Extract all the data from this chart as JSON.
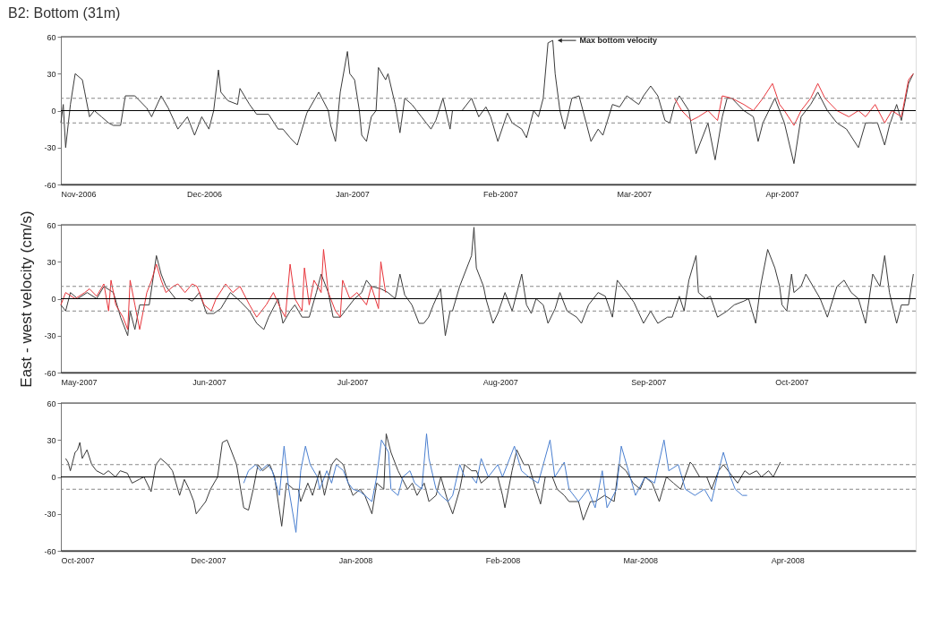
{
  "chart_data": [
    {
      "type": "line",
      "title": "B2: Bottom (31m)",
      "xlim": [
        "2006-11-01",
        "2007-04-29"
      ],
      "ylim": [
        -60,
        60
      ],
      "yticks": [
        -60,
        -30,
        0,
        30,
        60
      ],
      "xticks": [
        {
          "value": "2006-11-01",
          "label": "Nov-2006"
        },
        {
          "value": "2006-12-01",
          "label": "Dec-2006"
        },
        {
          "value": "2007-01-01",
          "label": "Jan-2007"
        },
        {
          "value": "2007-02-01",
          "label": "Feb-2007"
        },
        {
          "value": "2007-03-01",
          "label": "Mar-2007"
        },
        {
          "value": "2007-04-01",
          "label": "Apr-2007"
        }
      ],
      "ref_lines": [
        {
          "axis": "y",
          "value": 0,
          "color": "#000000",
          "line_style": "solid"
        },
        {
          "axis": "y",
          "value": 10,
          "color": "#888888",
          "line_style": "dashed"
        },
        {
          "axis": "y",
          "value": -10,
          "color": "#888888",
          "line_style": "dashed"
        },
        {
          "axis": "y",
          "value": 60,
          "color": "#333333",
          "line_style": "solid"
        },
        {
          "axis": "y",
          "value": -60,
          "color": "#333333",
          "line_style": "solid"
        }
      ],
      "annotations": [
        {
          "text": "Max bottom velocity",
          "x": "2007-02-12",
          "y": 57
        }
      ],
      "series": [
        {
          "color": "#3a3a3a",
          "x": [
            "2006-11-01",
            "2006-11-01T12:00",
            "2006-11-02",
            "2006-11-03",
            "2006-11-04",
            "2006-11-05T12:00",
            "2006-11-06",
            "2006-11-07",
            "2006-11-08",
            "2006-11-09T12:00",
            "2006-11-11",
            "2006-11-12",
            "2006-11-13T12:00",
            "2006-11-14T12:00",
            "2006-11-16T12:00",
            "2006-11-19",
            "2006-11-20",
            "2006-11-22",
            "2006-11-23T12:00",
            "2006-11-25T12:00",
            "2006-11-27T12:00",
            "2006-11-29",
            "2006-11-30T12:00",
            "2006-12-02",
            "2006-12-03",
            "2006-12-04",
            "2006-12-04T12:00",
            "2006-12-06",
            "2006-12-08",
            "2006-12-08T12:00",
            "2006-12-10T12:00",
            "2006-12-12",
            "2006-12-14T12:00",
            "2006-12-16T12:00",
            "2006-12-17T12:00",
            "2006-12-19",
            "2006-12-20T12:00",
            "2006-12-21T12:00",
            "2006-12-22T12:00",
            "2006-12-25",
            "2006-12-27",
            "2006-12-27T12:00",
            "2006-12-28T12:00",
            "2006-12-29T12:00",
            "2006-12-31",
            "2006-12-31T12:00",
            "2007-01-01T12:00",
            "2007-01-02T12:00",
            "2007-01-03",
            "2007-01-04",
            "2007-01-05",
            "2007-01-06",
            "2007-01-06T12:00",
            "2007-01-08",
            "2007-01-08T12:00",
            "2007-01-10",
            "2007-01-11",
            "2007-01-12",
            "2007-01-13T12:00",
            "2007-01-15T12:00",
            "2007-01-16T12:00",
            "2007-01-17T12:00",
            "2007-01-18T12:00",
            "2007-01-20",
            "2007-01-21T12:00",
            "2007-01-22",
            "2007-01-24",
            "2007-01-26",
            "2007-01-27T12:00",
            "2007-01-29",
            "2007-01-30",
            "2007-01-31T12:00",
            "2007-02-02T12:00",
            "2007-02-03T12:00",
            "2007-02-05T12:00",
            "2007-02-06T12:00",
            "2007-02-08",
            "2007-02-09",
            "2007-02-10",
            "2007-02-11",
            "2007-02-12",
            "2007-02-12T12:00",
            "2007-02-13T12:00",
            "2007-02-14T12:00",
            "2007-02-16",
            "2007-02-17T12:00",
            "2007-02-19",
            "2007-02-20",
            "2007-02-21T12:00",
            "2007-02-22T12:00",
            "2007-02-24T12:00",
            "2007-02-26",
            "2007-02-27T12:00",
            "2007-03-02",
            "2007-03-03",
            "2007-03-04T12:00",
            "2007-03-06",
            "2007-03-07T12:00",
            "2007-03-08T12:00",
            "2007-03-09T12:00",
            "2007-03-10T12:00",
            "2007-03-12T12:00",
            "2007-03-14",
            "2007-03-15T12:00",
            "2007-03-16T12:00",
            "2007-03-18",
            "2007-03-19T12:00",
            "2007-03-20T12:00",
            "2007-03-21T12:00",
            "2007-03-24",
            "2007-03-26",
            "2007-03-27",
            "2007-03-28",
            "2007-03-30T12:00",
            "2007-04-01T12:00",
            "2007-04-03T12:00",
            "2007-04-05",
            "2007-04-07",
            "2007-04-08T12:00",
            "2007-04-10T12:00",
            "2007-04-12T12:00",
            "2007-04-14T12:00",
            "2007-04-17",
            "2007-04-18T12:00",
            "2007-04-21",
            "2007-04-22T12:00",
            "2007-04-23T12:00",
            "2007-04-25",
            "2007-04-26",
            "2007-04-27T12:00",
            "2007-04-28T12:00"
          ],
          "values": [
            -10,
            5,
            -30,
            5,
            30,
            25,
            15,
            -5,
            0,
            -5,
            -10,
            -12,
            -12,
            12,
            12,
            2,
            -5,
            12,
            2,
            -15,
            -5,
            -20,
            -5,
            -15,
            0,
            33,
            15,
            8,
            5,
            18,
            5,
            -3,
            -3,
            -15,
            -15,
            -22,
            -28,
            -15,
            -2,
            15,
            0,
            -12,
            -25,
            15,
            48,
            30,
            25,
            0,
            -20,
            -25,
            -5,
            0,
            35,
            25,
            30,
            5,
            -18,
            10,
            5,
            -5,
            -10,
            -15,
            -8,
            10,
            -15,
            0,
            0,
            10,
            -5,
            3,
            -5,
            -25,
            -2,
            -10,
            -15,
            -22,
            0,
            -5,
            10,
            55,
            57,
            30,
            0,
            -15,
            10,
            12,
            -10,
            -25,
            -15,
            -20,
            5,
            3,
            12,
            5,
            12,
            20,
            12,
            -8,
            -10,
            5,
            12,
            0,
            -35,
            -20,
            -10,
            -40,
            -5,
            10,
            10,
            0,
            -5,
            -25,
            -10,
            10,
            -10,
            -43,
            -5,
            5,
            15,
            0,
            -10,
            -15,
            -30,
            -10,
            -10,
            -28,
            -12,
            5,
            -8,
            22,
            30
          ]
        },
        {
          "color": "#e8343a",
          "x": [
            "2007-03-09T12:00",
            "2007-03-11",
            "2007-03-13",
            "2007-03-14T12:00",
            "2007-03-16T12:00",
            "2007-03-18T12:00",
            "2007-03-19T12:00",
            "2007-03-21T12:00",
            "2007-03-24",
            "2007-03-26",
            "2007-03-28",
            "2007-03-30",
            "2007-03-31T12:00",
            "2007-04-01T12:00",
            "2007-04-03T12:00",
            "2007-04-05",
            "2007-04-07",
            "2007-04-08T12:00",
            "2007-04-10",
            "2007-04-12T12:00",
            "2007-04-15",
            "2007-04-17",
            "2007-04-18T12:00",
            "2007-04-20T12:00",
            "2007-04-22T12:00",
            "2007-04-24",
            "2007-04-26",
            "2007-04-27T12:00",
            "2007-04-28T12:00"
          ],
          "values": [
            10,
            0,
            -8,
            -5,
            0,
            -8,
            12,
            10,
            5,
            0,
            10,
            22,
            5,
            0,
            -12,
            0,
            10,
            22,
            10,
            0,
            -5,
            0,
            -5,
            5,
            -10,
            0,
            -5,
            25,
            30
          ]
        }
      ]
    },
    {
      "type": "line",
      "ylabel": "East - west velocity (cm/s)",
      "xlim": [
        "2007-05-01",
        "2007-10-27"
      ],
      "ylim": [
        -60,
        60
      ],
      "yticks": [
        -60,
        -30,
        0,
        30,
        60
      ],
      "xticks": [
        {
          "value": "2007-05-01",
          "label": "May-2007"
        },
        {
          "value": "2007-06-01",
          "label": "Jun-2007"
        },
        {
          "value": "2007-07-01",
          "label": "Jul-2007"
        },
        {
          "value": "2007-08-01",
          "label": "Aug-2007"
        },
        {
          "value": "2007-09-01",
          "label": "Sep-2007"
        },
        {
          "value": "2007-10-01",
          "label": "Oct-2007"
        }
      ],
      "ref_lines": [
        {
          "axis": "y",
          "value": 0,
          "color": "#000000",
          "line_style": "solid"
        },
        {
          "axis": "y",
          "value": 10,
          "color": "#888888",
          "line_style": "dashed"
        },
        {
          "axis": "y",
          "value": -10,
          "color": "#888888",
          "line_style": "dashed"
        },
        {
          "axis": "y",
          "value": 60,
          "color": "#333333",
          "line_style": "solid"
        },
        {
          "axis": "y",
          "value": -60,
          "color": "#333333",
          "line_style": "solid"
        }
      ],
      "series": [
        {
          "color": "#3a3a3a",
          "x": [
            "2007-05-01",
            "2007-05-02",
            "2007-05-03",
            "2007-05-04T12:00",
            "2007-05-06T12:00",
            "2007-05-08T12:00",
            "2007-05-10",
            "2007-05-12",
            "2007-05-13T12:00",
            "2007-05-14",
            "2007-05-15",
            "2007-05-15T12:00",
            "2007-05-16T12:00",
            "2007-05-17T12:00",
            "2007-05-19T12:00",
            "2007-05-21",
            "2007-05-22",
            "2007-05-23",
            "2007-05-25",
            "2007-05-27T12:00",
            "2007-05-28T12:00",
            "2007-05-30",
            "2007-05-31T12:00",
            "2007-06-02",
            "2007-06-03T12:00",
            "2007-06-05T12:00",
            "2007-06-07T12:00",
            "2007-06-09T12:00",
            "2007-06-11",
            "2007-06-12T12:00",
            "2007-06-13T12:00",
            "2007-06-15T12:00",
            "2007-06-16T12:00",
            "2007-06-18",
            "2007-06-19",
            "2007-06-20T12:00",
            "2007-06-22",
            "2007-06-23T12:00",
            "2007-06-24T12:00",
            "2007-06-26",
            "2007-06-27",
            "2007-06-28T12:00",
            "2007-06-29T12:00",
            "2007-07-01T12:00",
            "2007-07-03",
            "2007-07-04",
            "2007-07-05",
            "2007-07-07",
            "2007-07-08T12:00",
            "2007-07-10",
            "2007-07-11",
            "2007-07-12",
            "2007-07-13T12:00",
            "2007-07-15",
            "2007-07-16",
            "2007-07-17",
            "2007-07-18",
            "2007-07-19T12:00",
            "2007-07-20T12:00",
            "2007-07-21T12:00",
            "2007-07-22",
            "2007-07-23T12:00",
            "2007-07-24T12:00",
            "2007-07-26",
            "2007-07-26T12:00",
            "2007-07-27",
            "2007-07-28T12:00",
            "2007-07-29",
            "2007-07-30T12:00",
            "2007-07-31T12:00",
            "2007-08-02",
            "2007-08-03T12:00",
            "2007-08-05T12:00",
            "2007-08-06T12:00",
            "2007-08-07T12:00",
            "2007-08-08T12:00",
            "2007-08-10",
            "2007-08-11",
            "2007-08-12T12:00",
            "2007-08-13T12:00",
            "2007-08-15",
            "2007-08-17",
            "2007-08-18",
            "2007-08-19T12:00",
            "2007-08-21T12:00",
            "2007-08-23",
            "2007-08-24T12:00",
            "2007-08-25T12:00",
            "2007-08-27T12:00",
            "2007-08-29",
            "2007-08-31",
            "2007-09-01T12:00",
            "2007-09-03",
            "2007-09-05",
            "2007-09-06",
            "2007-09-07T12:00",
            "2007-09-08T12:00",
            "2007-09-09T12:00",
            "2007-09-11",
            "2007-09-11T12:00",
            "2007-09-13",
            "2007-09-14",
            "2007-09-15T12:00",
            "2007-09-17T12:00",
            "2007-09-19",
            "2007-09-21",
            "2007-09-22",
            "2007-09-23T12:00",
            "2007-09-24T12:00",
            "2007-09-26",
            "2007-09-27T12:00",
            "2007-09-28T12:00",
            "2007-09-29",
            "2007-09-30",
            "2007-10-01",
            "2007-10-01T12:00",
            "2007-10-03",
            "2007-10-04",
            "2007-10-05T12:00",
            "2007-10-07",
            "2007-10-08T12:00",
            "2007-10-10T12:00",
            "2007-10-12",
            "2007-10-13T12:00",
            "2007-10-15",
            "2007-10-16T12:00",
            "2007-10-18",
            "2007-10-19T12:00",
            "2007-10-20T12:00",
            "2007-10-21T12:00",
            "2007-10-23",
            "2007-10-24",
            "2007-10-25T12:00",
            "2007-10-26T12:00"
          ],
          "values": [
            -5,
            -10,
            5,
            0,
            5,
            0,
            10,
            5,
            -15,
            -20,
            -30,
            -10,
            -25,
            -5,
            -5,
            35,
            20,
            10,
            0,
            0,
            -2,
            5,
            -12,
            -12,
            -8,
            5,
            -2,
            -10,
            -20,
            -25,
            -15,
            0,
            -20,
            -10,
            -5,
            -15,
            -15,
            5,
            20,
            5,
            -15,
            -15,
            -10,
            0,
            5,
            15,
            10,
            8,
            5,
            0,
            20,
            3,
            -5,
            -20,
            -20,
            -15,
            -5,
            8,
            -30,
            -10,
            -10,
            10,
            20,
            35,
            58,
            25,
            10,
            0,
            -20,
            -12,
            5,
            -10,
            20,
            -5,
            -12,
            0,
            -5,
            -20,
            -8,
            5,
            -10,
            -15,
            -20,
            -5,
            5,
            2,
            -15,
            15,
            5,
            -3,
            -20,
            -10,
            -20,
            -15,
            -15,
            2,
            -10,
            15,
            35,
            5,
            0,
            2,
            -15,
            -10,
            -5,
            -2,
            0,
            -20,
            10,
            40,
            25,
            10,
            -5,
            -10,
            20,
            5,
            10,
            20,
            10,
            0,
            -15,
            10,
            15,
            5,
            0,
            -20,
            20,
            10,
            35,
            5,
            -20,
            -5,
            -5,
            20
          ]
        },
        {
          "color": "#e8343a",
          "x": [
            "2007-05-01",
            "2007-05-02",
            "2007-05-04",
            "2007-05-06",
            "2007-05-07",
            "2007-05-08T12:00",
            "2007-05-10",
            "2007-05-11",
            "2007-05-11T12:00",
            "2007-05-12T12:00",
            "2007-05-14",
            "2007-05-15",
            "2007-05-15T12:00",
            "2007-05-16T12:00",
            "2007-05-17T12:00",
            "2007-05-19",
            "2007-05-20",
            "2007-05-21",
            "2007-05-22",
            "2007-05-23",
            "2007-05-24T12:00",
            "2007-05-25T12:00",
            "2007-05-27",
            "2007-05-28T12:00",
            "2007-05-29T12:00",
            "2007-05-31",
            "2007-06-01T12:00",
            "2007-06-02T12:00",
            "2007-06-04T12:00",
            "2007-06-06",
            "2007-06-07T12:00",
            "2007-06-09T12:00",
            "2007-06-11",
            "2007-06-13",
            "2007-06-14T12:00",
            "2007-06-16",
            "2007-06-17",
            "2007-06-18",
            "2007-06-19",
            "2007-06-20T12:00",
            "2007-06-21",
            "2007-06-22",
            "2007-06-23",
            "2007-06-24T12:00",
            "2007-06-25",
            "2007-06-26",
            "2007-06-27T12:00",
            "2007-06-28T12:00",
            "2007-06-29",
            "2007-06-30T12:00",
            "2007-07-02",
            "2007-07-04",
            "2007-07-05",
            "2007-07-06T12:00",
            "2007-07-07",
            "2007-07-08"
          ],
          "values": [
            -5,
            5,
            0,
            5,
            8,
            2,
            12,
            -10,
            15,
            -5,
            -15,
            -25,
            15,
            -5,
            -25,
            5,
            15,
            28,
            15,
            5,
            10,
            12,
            5,
            12,
            10,
            -5,
            -10,
            0,
            12,
            5,
            10,
            -5,
            -15,
            -5,
            5,
            -8,
            -15,
            28,
            0,
            -10,
            25,
            -5,
            15,
            5,
            40,
            5,
            -10,
            -15,
            15,
            0,
            5,
            -5,
            10,
            -8,
            30,
            5
          ]
        }
      ]
    },
    {
      "type": "line",
      "xlim": [
        "2007-10-31",
        "2008-04-28"
      ],
      "ylim": [
        -60,
        60
      ],
      "yticks": [
        -60,
        -30,
        0,
        30,
        60
      ],
      "xticks": [
        {
          "value": "2007-10-31",
          "label": "Oct-2007"
        },
        {
          "value": "2007-12-01",
          "label": "Dec-2007"
        },
        {
          "value": "2008-01-01",
          "label": "Jan-2008"
        },
        {
          "value": "2008-02-01",
          "label": "Feb-2008"
        },
        {
          "value": "2008-03-01",
          "label": "Mar-2008"
        },
        {
          "value": "2008-04-01",
          "label": "Apr-2008"
        }
      ],
      "ref_lines": [
        {
          "axis": "y",
          "value": 0,
          "color": "#000000",
          "line_style": "solid"
        },
        {
          "axis": "y",
          "value": 10,
          "color": "#888888",
          "line_style": "dashed"
        },
        {
          "axis": "y",
          "value": -10,
          "color": "#888888",
          "line_style": "dashed"
        },
        {
          "axis": "y",
          "value": 60,
          "color": "#333333",
          "line_style": "solid"
        },
        {
          "axis": "y",
          "value": -60,
          "color": "#333333",
          "line_style": "solid"
        }
      ],
      "series": [
        {
          "color": "#3a3a3a",
          "x": [
            "2007-11-01",
            "2007-11-01T12:00",
            "2007-11-02",
            "2007-11-03",
            "2007-11-03T12:00",
            "2007-11-04",
            "2007-11-04T12:00",
            "2007-11-05T12:00",
            "2007-11-06T12:00",
            "2007-11-07T12:00",
            "2007-11-09",
            "2007-11-10",
            "2007-11-11T12:00",
            "2007-11-12T12:00",
            "2007-11-14",
            "2007-11-15",
            "2007-11-16T12:00",
            "2007-11-17T12:00",
            "2007-11-19",
            "2007-11-20",
            "2007-11-21",
            "2007-11-22T12:00",
            "2007-11-23T12:00",
            "2007-11-25",
            "2007-11-26",
            "2007-11-27",
            "2007-11-28",
            "2007-11-28T12:00",
            "2007-11-29T12:00",
            "2007-11-30T12:00",
            "2007-12-01T12:00",
            "2007-12-03",
            "2007-12-04",
            "2007-12-05",
            "2007-12-06",
            "2007-12-07",
            "2007-12-08T12:00",
            "2007-12-09T12:00",
            "2007-12-10T12:00",
            "2007-12-11T12:00",
            "2007-12-12T12:00",
            "2007-12-14",
            "2007-12-15",
            "2007-12-16T12:00",
            "2007-12-17T12:00",
            "2007-12-19",
            "2007-12-20",
            "2007-12-20T12:00",
            "2007-12-22",
            "2007-12-23",
            "2007-12-24T12:00",
            "2007-12-25T12:00",
            "2007-12-27",
            "2007-12-28",
            "2007-12-29T12:00",
            "2007-12-30T12:00",
            "2007-12-31T12:00",
            "2008-01-02",
            "2008-01-03",
            "2008-01-04T12:00",
            "2008-01-05T12:00",
            "2008-01-07",
            "2008-01-07T12:00",
            "2008-01-08T12:00",
            "2008-01-10",
            "2008-01-12",
            "2008-01-13",
            "2008-01-14",
            "2008-01-15T12:00",
            "2008-01-16T12:00",
            "2008-01-18",
            "2008-01-19",
            "2008-01-20T12:00",
            "2008-01-21T12:00",
            "2008-01-23",
            "2008-01-24",
            "2008-01-25T12:00",
            "2008-01-26T12:00",
            "2008-01-27T12:00",
            "2008-01-29",
            "2008-01-31",
            "2008-02-01",
            "2008-02-01T12:00",
            "2008-02-03",
            "2008-02-04",
            "2008-02-05T12:00",
            "2008-02-06T12:00",
            "2008-02-08",
            "2008-02-09",
            "2008-02-10",
            "2008-02-11T12:00",
            "2008-02-12T12:00",
            "2008-02-14",
            "2008-02-15",
            "2008-02-17",
            "2008-02-18",
            "2008-02-19T12:00",
            "2008-02-20T12:00",
            "2008-02-22T12:00",
            "2008-02-24T12:00",
            "2008-02-25T12:00",
            "2008-02-27",
            "2008-02-28T12:00",
            "2008-03-01",
            "2008-03-02",
            "2008-03-03T12:00",
            "2008-03-05",
            "2008-03-06T12:00",
            "2008-03-08",
            "2008-03-09T12:00",
            "2008-03-11T12:00",
            "2008-03-12",
            "2008-03-13T12:00",
            "2008-03-15",
            "2008-03-16",
            "2008-03-17T12:00",
            "2008-03-18T12:00",
            "2008-03-20T12:00",
            "2008-03-21T12:00",
            "2008-03-23",
            "2008-03-24",
            "2008-03-25T12:00",
            "2008-03-26T12:00",
            "2008-03-28",
            "2008-03-29",
            "2008-03-30T12:00"
          ],
          "values": [
            15,
            12,
            5,
            20,
            22,
            28,
            15,
            22,
            10,
            5,
            2,
            5,
            0,
            5,
            3,
            -5,
            -2,
            0,
            -12,
            10,
            15,
            10,
            5,
            -15,
            -2,
            -10,
            -20,
            -30,
            -25,
            -20,
            -10,
            0,
            28,
            30,
            20,
            10,
            -25,
            -27,
            -10,
            10,
            5,
            10,
            0,
            -40,
            -5,
            -10,
            -10,
            -20,
            -5,
            -15,
            5,
            -15,
            10,
            15,
            10,
            -5,
            -15,
            -10,
            -15,
            -30,
            -5,
            -10,
            35,
            20,
            5,
            -10,
            -5,
            -15,
            -5,
            -20,
            -15,
            0,
            -20,
            -30,
            -10,
            10,
            5,
            5,
            -5,
            0,
            0,
            -15,
            -25,
            5,
            22,
            10,
            10,
            -10,
            -22,
            0,
            0,
            -10,
            -15,
            -20,
            -20,
            -35,
            -20,
            -20,
            -15,
            -20,
            10,
            5,
            -5,
            -10,
            0,
            -5,
            -20,
            0,
            -5,
            -10,
            12,
            10,
            0,
            0,
            -10,
            5,
            10,
            0,
            -5,
            5,
            2,
            5,
            0,
            5,
            0,
            12
          ]
        },
        {
          "color": "#4a7fd0",
          "x": [
            "2007-12-08T12:00",
            "2007-12-09T12:00",
            "2007-12-11",
            "2007-12-12",
            "2007-12-13T12:00",
            "2007-12-14T12:00",
            "2007-12-16",
            "2007-12-17",
            "2007-12-18",
            "2007-12-19T12:00",
            "2007-12-20T12:00",
            "2007-12-21T12:00",
            "2007-12-22T12:00",
            "2007-12-24",
            "2007-12-24T12:00",
            "2007-12-26",
            "2007-12-27",
            "2007-12-28",
            "2007-12-29T12:00",
            "2007-12-30T12:00",
            "2007-12-31T12:00",
            "2008-01-02",
            "2008-01-03",
            "2008-01-04T12:00",
            "2008-01-05T12:00",
            "2008-01-06T12:00",
            "2008-01-08",
            "2008-01-08T12:00",
            "2008-01-10",
            "2008-01-11",
            "2008-01-12T12:00",
            "2008-01-13T12:00",
            "2008-01-15",
            "2008-01-16",
            "2008-01-16T12:00",
            "2008-01-18",
            "2008-01-19",
            "2008-01-20T12:00",
            "2008-01-21T12:00",
            "2008-01-23",
            "2008-01-24",
            "2008-01-25T12:00",
            "2008-01-26T12:00",
            "2008-01-27T12:00",
            "2008-01-29",
            "2008-01-31",
            "2008-02-01",
            "2008-02-03T12:00",
            "2008-02-05",
            "2008-02-06T12:00",
            "2008-02-08T12:00",
            "2008-02-11",
            "2008-02-12",
            "2008-02-14",
            "2008-02-15",
            "2008-02-17",
            "2008-02-19",
            "2008-02-20T12:00",
            "2008-02-22",
            "2008-02-23",
            "2008-02-25",
            "2008-02-26",
            "2008-02-27T12:00",
            "2008-02-29",
            "2008-03-02",
            "2008-03-04",
            "2008-03-06",
            "2008-03-07",
            "2008-03-09",
            "2008-03-10T12:00",
            "2008-03-12T12:00",
            "2008-03-14T12:00",
            "2008-03-16",
            "2008-03-17T12:00",
            "2008-03-18T12:00",
            "2008-03-20",
            "2008-03-21",
            "2008-03-22T12:00",
            "2008-03-23T12:00"
          ],
          "values": [
            -5,
            5,
            10,
            5,
            10,
            5,
            -15,
            25,
            -10,
            -45,
            5,
            25,
            10,
            0,
            -10,
            5,
            -5,
            10,
            5,
            -5,
            -10,
            -12,
            -15,
            -20,
            0,
            30,
            20,
            -10,
            -15,
            0,
            5,
            -5,
            -10,
            35,
            15,
            -10,
            -15,
            -20,
            -15,
            10,
            0,
            0,
            -5,
            15,
            0,
            10,
            0,
            25,
            5,
            0,
            -5,
            30,
            0,
            12,
            -10,
            -20,
            -10,
            -25,
            5,
            -25,
            -10,
            25,
            5,
            -15,
            0,
            -5,
            30,
            5,
            10,
            -10,
            -15,
            -10,
            -20,
            5,
            20,
            0,
            -10,
            -15,
            -15
          ]
        }
      ]
    }
  ]
}
